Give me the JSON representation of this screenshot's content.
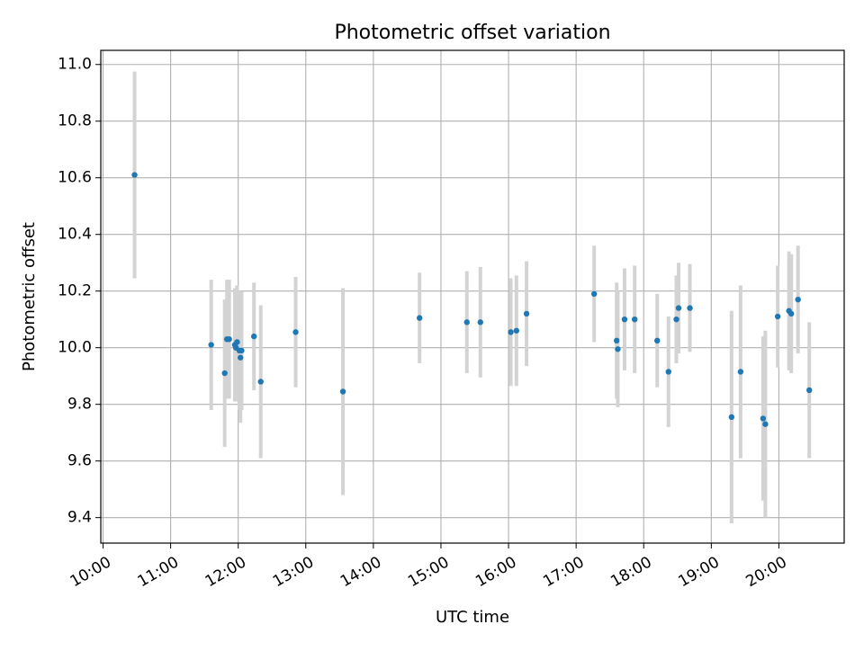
{
  "chart_data": {
    "type": "scatter",
    "title": "Photometric offset variation",
    "xlabel": "UTC time",
    "ylabel": "Photometric offset",
    "x_axis_kind": "time",
    "xlim": [
      "09:58",
      "20:58"
    ],
    "ylim": [
      9.31,
      11.05
    ],
    "grid": true,
    "x_ticks": [
      "10:00",
      "11:00",
      "12:00",
      "13:00",
      "14:00",
      "15:00",
      "16:00",
      "17:00",
      "18:00",
      "19:00",
      "20:00"
    ],
    "y_ticks": [
      "9.4",
      "9.6",
      "9.8",
      "10.0",
      "10.2",
      "10.4",
      "10.6",
      "10.8",
      "11.0"
    ],
    "colors": {
      "marker": "#1f77b4",
      "errorbar": "#d3d3d3",
      "grid": "#b0b0b0"
    },
    "points": [
      {
        "x": "10:28",
        "y": 10.61,
        "err": 0.365
      },
      {
        "x": "11:36",
        "y": 10.01,
        "err": 0.23
      },
      {
        "x": "11:48",
        "y": 9.91,
        "err": 0.26
      },
      {
        "x": "11:50",
        "y": 10.03,
        "err": 0.21
      },
      {
        "x": "11:52",
        "y": 10.03,
        "err": 0.21
      },
      {
        "x": "11:57",
        "y": 10.01,
        "err": 0.2
      },
      {
        "x": "11:58",
        "y": 10.0,
        "err": 0.19
      },
      {
        "x": "11:59",
        "y": 10.02,
        "err": 0.2
      },
      {
        "x": "12:01",
        "y": 9.99,
        "err": 0.21
      },
      {
        "x": "12:03",
        "y": 9.99,
        "err": 0.21
      },
      {
        "x": "12:02",
        "y": 9.965,
        "err": 0.23
      },
      {
        "x": "12:14",
        "y": 10.04,
        "err": 0.19
      },
      {
        "x": "12:20",
        "y": 9.88,
        "err": 0.27
      },
      {
        "x": "12:51",
        "y": 10.055,
        "err": 0.195
      },
      {
        "x": "13:33",
        "y": 9.845,
        "err": 0.365
      },
      {
        "x": "14:41",
        "y": 10.105,
        "err": 0.16
      },
      {
        "x": "15:23",
        "y": 10.09,
        "err": 0.18
      },
      {
        "x": "15:35",
        "y": 10.09,
        "err": 0.195
      },
      {
        "x": "16:02",
        "y": 10.055,
        "err": 0.19
      },
      {
        "x": "16:07",
        "y": 10.06,
        "err": 0.195
      },
      {
        "x": "16:16",
        "y": 10.12,
        "err": 0.185
      },
      {
        "x": "17:16",
        "y": 10.19,
        "err": 0.17
      },
      {
        "x": "17:36",
        "y": 10.025,
        "err": 0.205
      },
      {
        "x": "17:37",
        "y": 9.995,
        "err": 0.205
      },
      {
        "x": "17:43",
        "y": 10.1,
        "err": 0.18
      },
      {
        "x": "17:52",
        "y": 10.1,
        "err": 0.19
      },
      {
        "x": "18:12",
        "y": 10.025,
        "err": 0.165
      },
      {
        "x": "18:22",
        "y": 9.915,
        "err": 0.195
      },
      {
        "x": "18:29",
        "y": 10.1,
        "err": 0.155
      },
      {
        "x": "18:31",
        "y": 10.14,
        "err": 0.16
      },
      {
        "x": "18:41",
        "y": 10.14,
        "err": 0.155
      },
      {
        "x": "19:18",
        "y": 9.755,
        "err": 0.375
      },
      {
        "x": "19:26",
        "y": 9.915,
        "err": 0.305
      },
      {
        "x": "19:46",
        "y": 9.75,
        "err": 0.29
      },
      {
        "x": "19:48",
        "y": 9.73,
        "err": 0.33
      },
      {
        "x": "19:59",
        "y": 10.11,
        "err": 0.18
      },
      {
        "x": "20:09",
        "y": 10.13,
        "err": 0.21
      },
      {
        "x": "20:11",
        "y": 10.12,
        "err": 0.21
      },
      {
        "x": "20:17",
        "y": 10.17,
        "err": 0.19
      },
      {
        "x": "20:27",
        "y": 9.85,
        "err": 0.24
      }
    ]
  }
}
